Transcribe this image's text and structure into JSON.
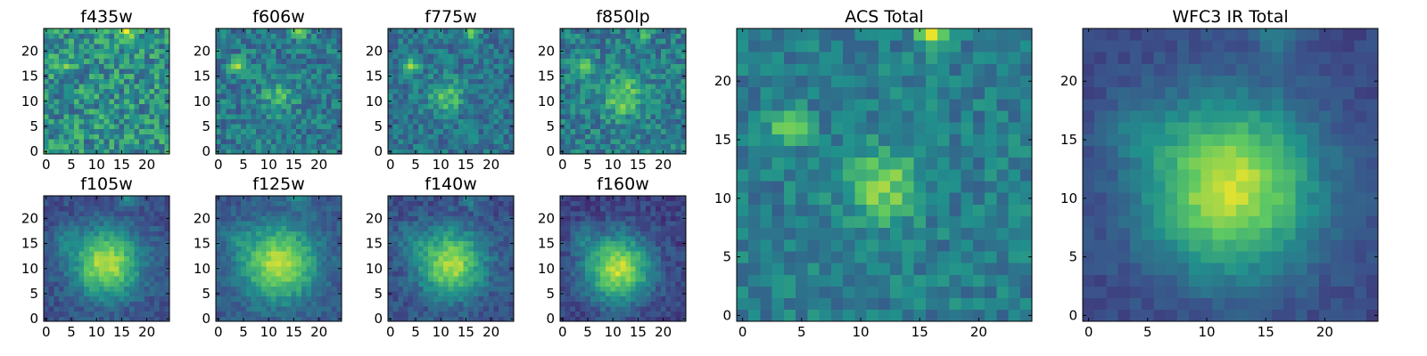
{
  "figure": {
    "background": "#ffffff"
  },
  "colormap": {
    "name": "viridis",
    "stops": [
      "#440154",
      "#3b528b",
      "#21918c",
      "#5ec962",
      "#fde725"
    ]
  },
  "chart_data": [
    {
      "type": "heatmap",
      "title": "f435w",
      "grid_size": 25,
      "xlim": [
        0,
        24
      ],
      "ylim": [
        0,
        24
      ],
      "xticks": [
        0,
        5,
        10,
        15,
        20
      ],
      "yticks": [
        0,
        5,
        10,
        15,
        20
      ],
      "base_level": 0.5,
      "noise": 0.22,
      "features": [
        {
          "x": 4,
          "y": 17,
          "amp": 0.3,
          "sigma": 1.1
        },
        {
          "x": 16,
          "y": 24,
          "amp": 0.35,
          "sigma": 1.0
        }
      ]
    },
    {
      "type": "heatmap",
      "title": "f606w",
      "grid_size": 25,
      "xlim": [
        0,
        24
      ],
      "ylim": [
        0,
        24
      ],
      "xticks": [
        0,
        5,
        10,
        15,
        20
      ],
      "yticks": [
        0,
        5,
        10,
        15,
        20
      ],
      "base_level": 0.4,
      "noise": 0.16,
      "features": [
        {
          "x": 4,
          "y": 17,
          "amp": 0.45,
          "sigma": 1.1
        },
        {
          "x": 12,
          "y": 11,
          "amp": 0.25,
          "sigma": 2.2
        },
        {
          "x": 16,
          "y": 24,
          "amp": 0.4,
          "sigma": 1.0
        }
      ]
    },
    {
      "type": "heatmap",
      "title": "f775w",
      "grid_size": 25,
      "xlim": [
        0,
        24
      ],
      "ylim": [
        0,
        24
      ],
      "xticks": [
        0,
        5,
        10,
        15,
        20
      ],
      "yticks": [
        0,
        5,
        10,
        15,
        20
      ],
      "base_level": 0.38,
      "noise": 0.14,
      "features": [
        {
          "x": 4,
          "y": 17,
          "amp": 0.45,
          "sigma": 1.1
        },
        {
          "x": 11,
          "y": 11,
          "amp": 0.35,
          "sigma": 2.3
        },
        {
          "x": 16,
          "y": 24,
          "amp": 0.4,
          "sigma": 1.0
        }
      ]
    },
    {
      "type": "heatmap",
      "title": "f850lp",
      "grid_size": 25,
      "xlim": [
        0,
        24
      ],
      "ylim": [
        0,
        24
      ],
      "xticks": [
        0,
        5,
        10,
        15,
        20
      ],
      "yticks": [
        0,
        5,
        10,
        15,
        20
      ],
      "base_level": 0.42,
      "noise": 0.16,
      "features": [
        {
          "x": 4,
          "y": 17,
          "amp": 0.4,
          "sigma": 1.1
        },
        {
          "x": 12,
          "y": 11,
          "amp": 0.35,
          "sigma": 2.8
        },
        {
          "x": 16,
          "y": 24,
          "amp": 0.35,
          "sigma": 1.0
        }
      ]
    },
    {
      "type": "heatmap",
      "title": "f105w",
      "grid_size": 25,
      "xlim": [
        0,
        24
      ],
      "ylim": [
        0,
        24
      ],
      "xticks": [
        0,
        5,
        10,
        15,
        20
      ],
      "yticks": [
        0,
        5,
        10,
        15,
        20
      ],
      "base_level": 0.25,
      "noise": 0.08,
      "features": [
        {
          "x": 12,
          "y": 11,
          "amp": 0.65,
          "sigma": 4.5
        },
        {
          "x": 4,
          "y": 16,
          "amp": 0.15,
          "sigma": 2.0
        },
        {
          "x": 16,
          "y": 24,
          "amp": 0.2,
          "sigma": 1.2
        }
      ]
    },
    {
      "type": "heatmap",
      "title": "f125w",
      "grid_size": 25,
      "xlim": [
        0,
        24
      ],
      "ylim": [
        0,
        24
      ],
      "xticks": [
        0,
        5,
        10,
        15,
        20
      ],
      "yticks": [
        0,
        5,
        10,
        15,
        20
      ],
      "base_level": 0.28,
      "noise": 0.08,
      "features": [
        {
          "x": 12,
          "y": 11,
          "amp": 0.62,
          "sigma": 5.0
        },
        {
          "x": 4,
          "y": 16,
          "amp": 0.12,
          "sigma": 2.0
        },
        {
          "x": 16,
          "y": 24,
          "amp": 0.18,
          "sigma": 1.2
        }
      ]
    },
    {
      "type": "heatmap",
      "title": "f140w",
      "grid_size": 25,
      "xlim": [
        0,
        24
      ],
      "ylim": [
        0,
        24
      ],
      "xticks": [
        0,
        5,
        10,
        15,
        20
      ],
      "yticks": [
        0,
        5,
        10,
        15,
        20
      ],
      "base_level": 0.25,
      "noise": 0.09,
      "features": [
        {
          "x": 12,
          "y": 11,
          "amp": 0.62,
          "sigma": 4.5
        },
        {
          "x": 4,
          "y": 16,
          "amp": 0.15,
          "sigma": 2.0
        },
        {
          "x": 16,
          "y": 24,
          "amp": 0.18,
          "sigma": 1.2
        }
      ]
    },
    {
      "type": "heatmap",
      "title": "f160w",
      "grid_size": 25,
      "xlim": [
        0,
        24
      ],
      "ylim": [
        0,
        24
      ],
      "xticks": [
        0,
        5,
        10,
        15,
        20
      ],
      "yticks": [
        0,
        5,
        10,
        15,
        20
      ],
      "base_level": 0.2,
      "noise": 0.08,
      "features": [
        {
          "x": 11,
          "y": 10,
          "amp": 0.7,
          "sigma": 4.5
        },
        {
          "x": 4,
          "y": 16,
          "amp": 0.15,
          "sigma": 2.0
        }
      ]
    },
    {
      "type": "heatmap",
      "title": "ACS Total",
      "grid_size": 25,
      "xlim": [
        0,
        24
      ],
      "ylim": [
        0,
        24
      ],
      "xticks": [
        0,
        5,
        10,
        15,
        20
      ],
      "yticks": [
        0,
        5,
        10,
        15,
        20
      ],
      "base_level": 0.42,
      "noise": 0.12,
      "features": [
        {
          "x": 4,
          "y": 16,
          "amp": 0.48,
          "sigma": 1.0
        },
        {
          "x": 12,
          "y": 11,
          "amp": 0.38,
          "sigma": 2.2
        },
        {
          "x": 16,
          "y": 24,
          "amp": 0.5,
          "sigma": 0.9
        }
      ]
    },
    {
      "type": "heatmap",
      "title": "WFC3 IR Total",
      "grid_size": 25,
      "xlim": [
        0,
        24
      ],
      "ylim": [
        0,
        24
      ],
      "xticks": [
        0,
        5,
        10,
        15,
        20
      ],
      "yticks": [
        0,
        5,
        10,
        15,
        20
      ],
      "base_level": 0.22,
      "noise": 0.05,
      "features": [
        {
          "x": 12,
          "y": 11,
          "amp": 0.7,
          "sigma": 5.0
        },
        {
          "x": 4,
          "y": 16,
          "amp": 0.12,
          "sigma": 2.0
        },
        {
          "x": 16,
          "y": 24,
          "amp": 0.18,
          "sigma": 1.3
        }
      ]
    }
  ]
}
